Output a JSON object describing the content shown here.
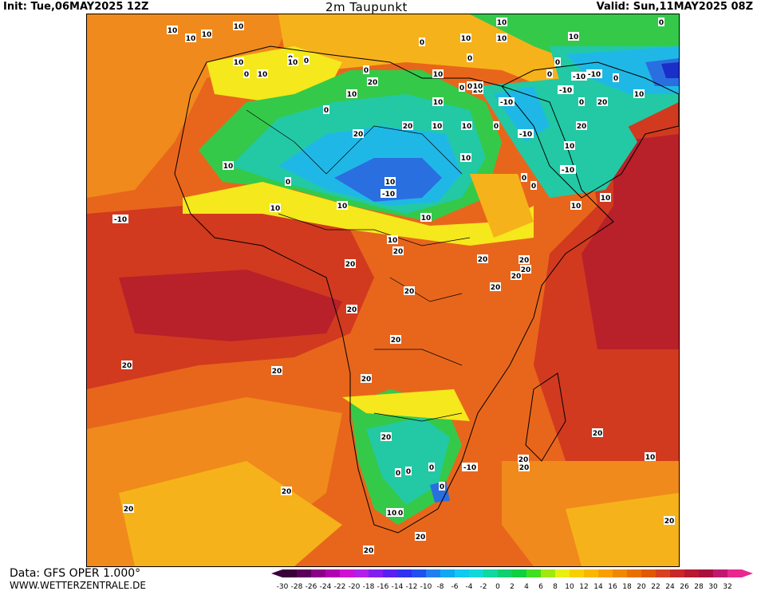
{
  "header": {
    "init": "Init: Tue,06MAY2025 12Z",
    "title": "2m Taupunkt",
    "valid": "Valid: Sun,11MAY2025 08Z"
  },
  "footer": {
    "data_source": "Data: GFS OPER 1.000°",
    "website": "WWW.WETTERZENTRALE.DE"
  },
  "colors": {
    "ocean_warm": "#e8661c",
    "hot": "#d13a1f",
    "very_hot": "#b8202a",
    "orange": "#f08a1c",
    "yellow_orange": "#f6b21a",
    "yellow": "#f5e81c",
    "lime": "#b7e21c",
    "green": "#35c94a",
    "teal": "#22c9a4",
    "cyan": "#1fb8e6",
    "blue": "#2a6fe0",
    "deep_blue": "#1a2ec8",
    "border": "#000000"
  },
  "scale": {
    "ticks": [
      "-30",
      "-28",
      "-26",
      "-24",
      "-22",
      "-20",
      "-18",
      "-16",
      "-14",
      "-12",
      "-10",
      "-8",
      "-6",
      "-4",
      "-2",
      "0",
      "2",
      "4",
      "6",
      "8",
      "10",
      "12",
      "14",
      "16",
      "18",
      "20",
      "22",
      "24",
      "26",
      "28",
      "30",
      "32"
    ],
    "colors": [
      "#3a003a",
      "#5a005a",
      "#8a008a",
      "#b000b0",
      "#d010d0",
      "#b020e8",
      "#8020f0",
      "#5a20f0",
      "#3030f0",
      "#2050f0",
      "#2080f0",
      "#10a8f0",
      "#10c8f0",
      "#10d8d8",
      "#10d8a0",
      "#10d070",
      "#10d040",
      "#40e020",
      "#a0e810",
      "#e8f010",
      "#f8d000",
      "#f8b800",
      "#f8a000",
      "#f08800",
      "#e87000",
      "#e05800",
      "#d84020",
      "#c82828",
      "#b81830",
      "#a81040",
      "#c01870",
      "#e82890"
    ]
  },
  "contour_labels": [
    "10",
    "10",
    "10",
    "10",
    "10",
    "0",
    "10",
    "0",
    "0",
    "0",
    "0",
    "10",
    "10",
    "0",
    "10",
    "10",
    "0",
    "0",
    "10",
    "-10",
    "-10",
    "0",
    "10",
    "0",
    "10",
    "10",
    "0",
    "10",
    "10",
    "0",
    "20",
    "10",
    "20",
    "-10",
    "10",
    "-10",
    "-10",
    "20",
    "10",
    "0",
    "0",
    "0",
    "0",
    "10",
    "10",
    "20",
    "20",
    "10",
    "10",
    "-10",
    "-10",
    "10",
    "10",
    "0",
    "-10",
    "10",
    "20",
    "20",
    "20",
    "20",
    "20",
    "20",
    "20",
    "20",
    "20",
    "20",
    "20",
    "20",
    "20",
    "20",
    "10",
    "20",
    "20",
    "20",
    "0",
    "0",
    "0",
    "0",
    "-10",
    "20",
    "20",
    "20",
    "20",
    "10",
    "10",
    "20",
    "20",
    "10",
    "10",
    "0"
  ]
}
